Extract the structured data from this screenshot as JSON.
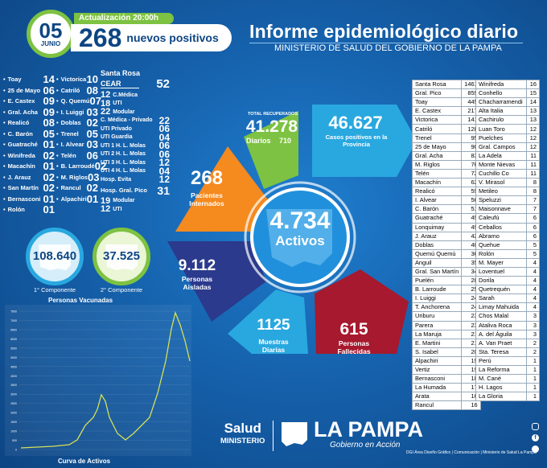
{
  "header": {
    "day": "05",
    "month": "JUNIO",
    "update_label": "Actualización 20:00h",
    "new_cases": "268",
    "new_cases_label": "nuevos positivos",
    "title": "Informe epidemiológico diario",
    "subtitle": "MINISTERIO DE SALUD DEL GOBIERNO DE LA PAMPA"
  },
  "left_col": [
    {
      "name": "Toay",
      "value": "14"
    },
    {
      "name": "25 de Mayo",
      "value": "06"
    },
    {
      "name": "E. Castex",
      "value": "09"
    },
    {
      "name": "Gral. Acha",
      "value": "09"
    },
    {
      "name": "Realicó",
      "value": "08"
    },
    {
      "name": "C. Barón",
      "value": "05"
    },
    {
      "name": "Guatraché",
      "value": "01"
    },
    {
      "name": "Winifreda",
      "value": "02"
    },
    {
      "name": "Macachín",
      "value": "01"
    },
    {
      "name": "J. Arauz",
      "value": "02"
    },
    {
      "name": "San Martín",
      "value": "02"
    },
    {
      "name": "Bernasconi",
      "value": "01"
    },
    {
      "name": "Rolón",
      "value": "01"
    }
  ],
  "mid_col": [
    {
      "name": "Victorica",
      "value": "10"
    },
    {
      "name": "Catriló",
      "value": "08"
    },
    {
      "name": "Q. Quemú",
      "value": "07"
    },
    {
      "name": "I. Luiggi",
      "value": "03"
    },
    {
      "name": "Doblas",
      "value": "02"
    },
    {
      "name": "Trenel",
      "value": "05"
    },
    {
      "name": "I. Alvear",
      "value": "03"
    },
    {
      "name": "Telén",
      "value": "06"
    },
    {
      "name": "B. Larroudé",
      "value": "02"
    },
    {
      "name": "M. Riglos",
      "value": "03"
    },
    {
      "name": "Rancul",
      "value": "02"
    },
    {
      "name": "Alpachiri",
      "value": "01"
    }
  ],
  "santa_rosa": {
    "label": "Santa Rosa",
    "cear_label": "CEAR",
    "cear_value": "52",
    "rows": [
      {
        "value": "12",
        "name": "C.Médica"
      },
      {
        "value": "18",
        "name": "UTI"
      },
      {
        "value": "22",
        "name": "Modular"
      }
    ],
    "hosp_rows": [
      {
        "name": "C. Médica - Privado",
        "value": "22"
      },
      {
        "name": "UTI Privado",
        "value": "06"
      },
      {
        "name": "UTI Guardia",
        "value": "04"
      },
      {
        "name": "UTI 1 H. L. Molas",
        "value": "06"
      },
      {
        "name": "UTI 2 H. L. Molas",
        "value": "06"
      },
      {
        "name": "UTI 3 H. L. Molas",
        "value": "12"
      },
      {
        "name": "UTI 4 H. L. Molas",
        "value": "04"
      },
      {
        "name": "Hosp. Evita",
        "value": "12"
      }
    ],
    "pico_label": "Hosp. Gral. Pico",
    "pico_value": "31",
    "pico_rows": [
      {
        "value": "19",
        "name": "Modular"
      },
      {
        "value": "12",
        "name": "UTI"
      }
    ]
  },
  "vaccines": {
    "first_value": "108.640",
    "first_label": "1° Componente",
    "second_value": "37.525",
    "second_label": "2° Componente",
    "caption": "Personas Vacunadas"
  },
  "curve": {
    "caption": "Curva de Activos",
    "y_ticks": [
      "7500",
      "7000",
      "6500",
      "6000",
      "5500",
      "5000",
      "4500",
      "4000",
      "3500",
      "3000",
      "2500",
      "2000",
      "1500",
      "1000",
      "500",
      "0"
    ]
  },
  "wheel": {
    "recovered_label": "TOTAL RECUPERADOS",
    "recovered_value": "41.278",
    "daily_label": "Diarios",
    "daily_value": "710",
    "positives_value": "46.627",
    "positives_label": "Casos positivos en la Provincia",
    "inpatients_value": "268",
    "inpatients_label": "Pacientes Internados",
    "isolated_value": "9.112",
    "isolated_label": "Personas Aisladas",
    "samples_value": "1125",
    "samples_label": "Muestras Diarias",
    "deaths_value": "615",
    "deaths_label": "Personas Fallecidas",
    "active_value": "4.734",
    "active_label": "Activos"
  },
  "table1": [
    [
      "Santa Rosa",
      "1461"
    ],
    [
      "Gral. Pico",
      "859"
    ],
    [
      "Toay",
      "445"
    ],
    [
      "E. Castex",
      "217"
    ],
    [
      "Victorica",
      "141"
    ],
    [
      "Catriló",
      "128"
    ],
    [
      "Trenel",
      "95"
    ],
    [
      "25 de Mayo",
      "90"
    ],
    [
      "Gral. Acha",
      "83"
    ],
    [
      "M. Riglos",
      "76"
    ],
    [
      "Telén",
      "72"
    ],
    [
      "Macachín",
      "62"
    ],
    [
      "Realicó",
      "59"
    ],
    [
      "I. Alvear",
      "56"
    ],
    [
      "C. Barón",
      "51"
    ],
    [
      "Guatraché",
      "49"
    ],
    [
      "Lonquimay",
      "49"
    ],
    [
      "J. Arauz",
      "42"
    ],
    [
      "Doblas",
      "40"
    ],
    [
      "Quemú Quemú",
      "36"
    ],
    [
      "Anguil",
      "35"
    ],
    [
      "Gral. San Martín",
      "34"
    ],
    [
      "Puelén",
      "28"
    ],
    [
      "B. Larroude",
      "25"
    ],
    [
      "I. Luiggi",
      "24"
    ],
    [
      "T. Anchorena",
      "24"
    ],
    [
      "Uriburu",
      "23"
    ],
    [
      "Parera",
      "23"
    ],
    [
      "La Maruja",
      "21"
    ],
    [
      "E. Martini",
      "21"
    ],
    [
      "S. Isabel",
      "20"
    ],
    [
      "Alpachiri",
      "19"
    ],
    [
      "Vertiz",
      "19"
    ],
    [
      "Bernasconi",
      "18"
    ],
    [
      "La Humada",
      "17"
    ],
    [
      "Arata",
      "16"
    ],
    [
      "Rancul",
      "16"
    ]
  ],
  "table2": [
    [
      "Winifreda",
      "16"
    ],
    [
      "Conhello",
      "15"
    ],
    [
      "Chacharramendi",
      "14"
    ],
    [
      "Alta Italia",
      "13"
    ],
    [
      "Cachirulo",
      "13"
    ],
    [
      "Luan Toro",
      "12"
    ],
    [
      "Puelches",
      "12"
    ],
    [
      "Gral. Campos",
      "12"
    ],
    [
      "La Adela",
      "11"
    ],
    [
      "Monte Nievas",
      "11"
    ],
    [
      "Cuchillo Co",
      "11"
    ],
    [
      "V. Mirasol",
      "8"
    ],
    [
      "Metileo",
      "8"
    ],
    [
      "Speluzzi",
      "7"
    ],
    [
      "Maisonnave",
      "7"
    ],
    [
      "Caleufú",
      "6"
    ],
    [
      "Ceballos",
      "6"
    ],
    [
      "Abramo",
      "6"
    ],
    [
      "Quehue",
      "5"
    ],
    [
      "Rolón",
      "5"
    ],
    [
      "M. Mayer",
      "4"
    ],
    [
      "Loventuel",
      "4"
    ],
    [
      "Dorila",
      "4"
    ],
    [
      "Quetrequén",
      "4"
    ],
    [
      "Sarah",
      "4"
    ],
    [
      "Limay Mahuida",
      "4"
    ],
    [
      "Chos Malal",
      "3"
    ],
    [
      "Ataliva Roca",
      "3"
    ],
    [
      "A. del Águila",
      "3"
    ],
    [
      "A. Van Praet",
      "2"
    ],
    [
      "Sta. Teresa",
      "2"
    ],
    [
      "Perú",
      "1"
    ],
    [
      "La Reforma",
      "1"
    ],
    [
      "M. Cané",
      "1"
    ],
    [
      "H. Lagos",
      "1"
    ],
    [
      "La Gloria",
      "1"
    ]
  ],
  "footer": {
    "salud": "Salud",
    "ministerio": "MINISTERIO",
    "la_pampa": "LA PAMPA",
    "gobierno": "Gobierno en Acción",
    "credits": "DGI Área Diseño Gráfico | Comunicación | Ministerio de Salud La Pampa"
  },
  "colors": {
    "green": "#7dc242",
    "orange": "#f58a1f",
    "navy": "#2b3a8c",
    "red": "#a6192e",
    "cyan": "#29a8e0"
  }
}
